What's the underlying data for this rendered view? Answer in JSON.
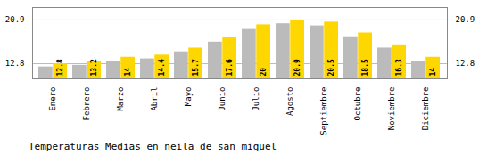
{
  "chart_data": {
    "type": "bar",
    "title": "Temperaturas Medias en neila de san miguel",
    "categories": [
      "Enero",
      "Febrero",
      "Marzo",
      "Abril",
      "Mayo",
      "Junio",
      "Julio",
      "Agosto",
      "Septiembre",
      "Octubre",
      "Noviembre",
      "Diciembre"
    ],
    "series": [
      {
        "color": "#BBBBBB",
        "values": [
          12.2,
          12.5,
          13.2,
          13.7,
          15.0,
          16.8,
          19.3,
          20.2,
          19.8,
          17.8,
          15.7,
          13.3
        ]
      },
      {
        "color": "#FFD700",
        "values": [
          12.8,
          13.2,
          14.0,
          14.4,
          15.7,
          17.6,
          20.0,
          20.9,
          20.5,
          18.5,
          16.3,
          14.0
        ],
        "data_labels": true
      }
    ],
    "ylim": [
      10.0,
      23.2
    ],
    "yticks": [
      12.8,
      20.9
    ],
    "grid": true
  }
}
